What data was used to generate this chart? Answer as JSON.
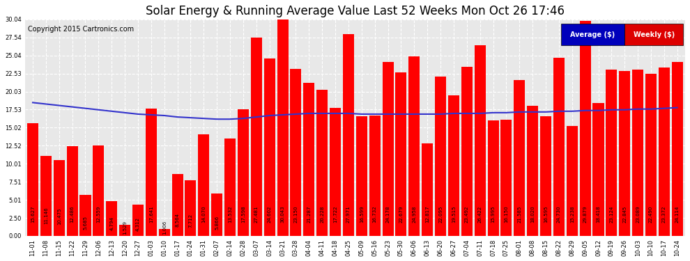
{
  "title": "Solar Energy & Running Average Value Last 52 Weeks Mon Oct 26 17:46",
  "copyright": "Copyright 2015 Cartronics.com",
  "categories": [
    "11-01",
    "11-08",
    "11-15",
    "11-22",
    "11-29",
    "12-06",
    "12-13",
    "12-20",
    "12-27",
    "01-03",
    "01-10",
    "01-17",
    "01-24",
    "01-31",
    "02-07",
    "02-14",
    "02-28",
    "03-07",
    "03-14",
    "03-21",
    "03-28",
    "04-04",
    "04-11",
    "04-18",
    "04-25",
    "05-09",
    "05-16",
    "05-23",
    "05-30",
    "06-06",
    "06-13",
    "06-20",
    "06-27",
    "07-04",
    "07-11",
    "07-18",
    "07-25",
    "08-01",
    "08-08",
    "08-15",
    "08-22",
    "08-29",
    "09-05",
    "09-12",
    "09-19",
    "09-26",
    "10-03",
    "10-10",
    "10-17",
    "10-24"
  ],
  "weekly_values": [
    15.627,
    11.146,
    10.475,
    12.486,
    5.685,
    12.559,
    4.794,
    1.529,
    4.312,
    17.641,
    1.006,
    8.564,
    7.712,
    14.07,
    5.866,
    13.532,
    17.598,
    27.481,
    24.602,
    30.043,
    23.15,
    21.287,
    20.228,
    17.722,
    27.971,
    16.599,
    16.732,
    24.178,
    22.679,
    24.958,
    12.817,
    22.095,
    19.515,
    23.492,
    26.422,
    15.995,
    16.15,
    21.585,
    18.02,
    16.595,
    24.73,
    15.238,
    29.879,
    18.418,
    23.124,
    22.845,
    23.089,
    22.49,
    23.372,
    24.114
  ],
  "running_avg": [
    18.5,
    18.3,
    18.1,
    17.9,
    17.7,
    17.5,
    17.3,
    17.1,
    16.9,
    16.8,
    16.7,
    16.5,
    16.4,
    16.3,
    16.2,
    16.2,
    16.3,
    16.5,
    16.7,
    16.8,
    16.9,
    17.0,
    17.0,
    17.0,
    17.0,
    16.9,
    16.9,
    16.9,
    16.9,
    16.9,
    16.9,
    16.9,
    17.0,
    17.0,
    17.0,
    17.1,
    17.1,
    17.2,
    17.2,
    17.2,
    17.3,
    17.3,
    17.4,
    17.4,
    17.5,
    17.5,
    17.6,
    17.6,
    17.7,
    17.8
  ],
  "bar_color": "#ff0000",
  "line_color": "#3333cc",
  "background_color": "#ffffff",
  "plot_bg_color": "#e8e8e8",
  "grid_color": "#ffffff",
  "yticks": [
    0.0,
    2.5,
    5.01,
    7.51,
    10.01,
    12.52,
    15.02,
    17.53,
    20.03,
    22.53,
    25.04,
    27.54,
    30.04
  ],
  "ylim": [
    0,
    30.04
  ],
  "legend_avg_color": "#0000bb",
  "legend_weekly_color": "#dd0000",
  "title_fontsize": 12,
  "copyright_fontsize": 7,
  "tick_fontsize": 6,
  "label_fontsize": 5
}
